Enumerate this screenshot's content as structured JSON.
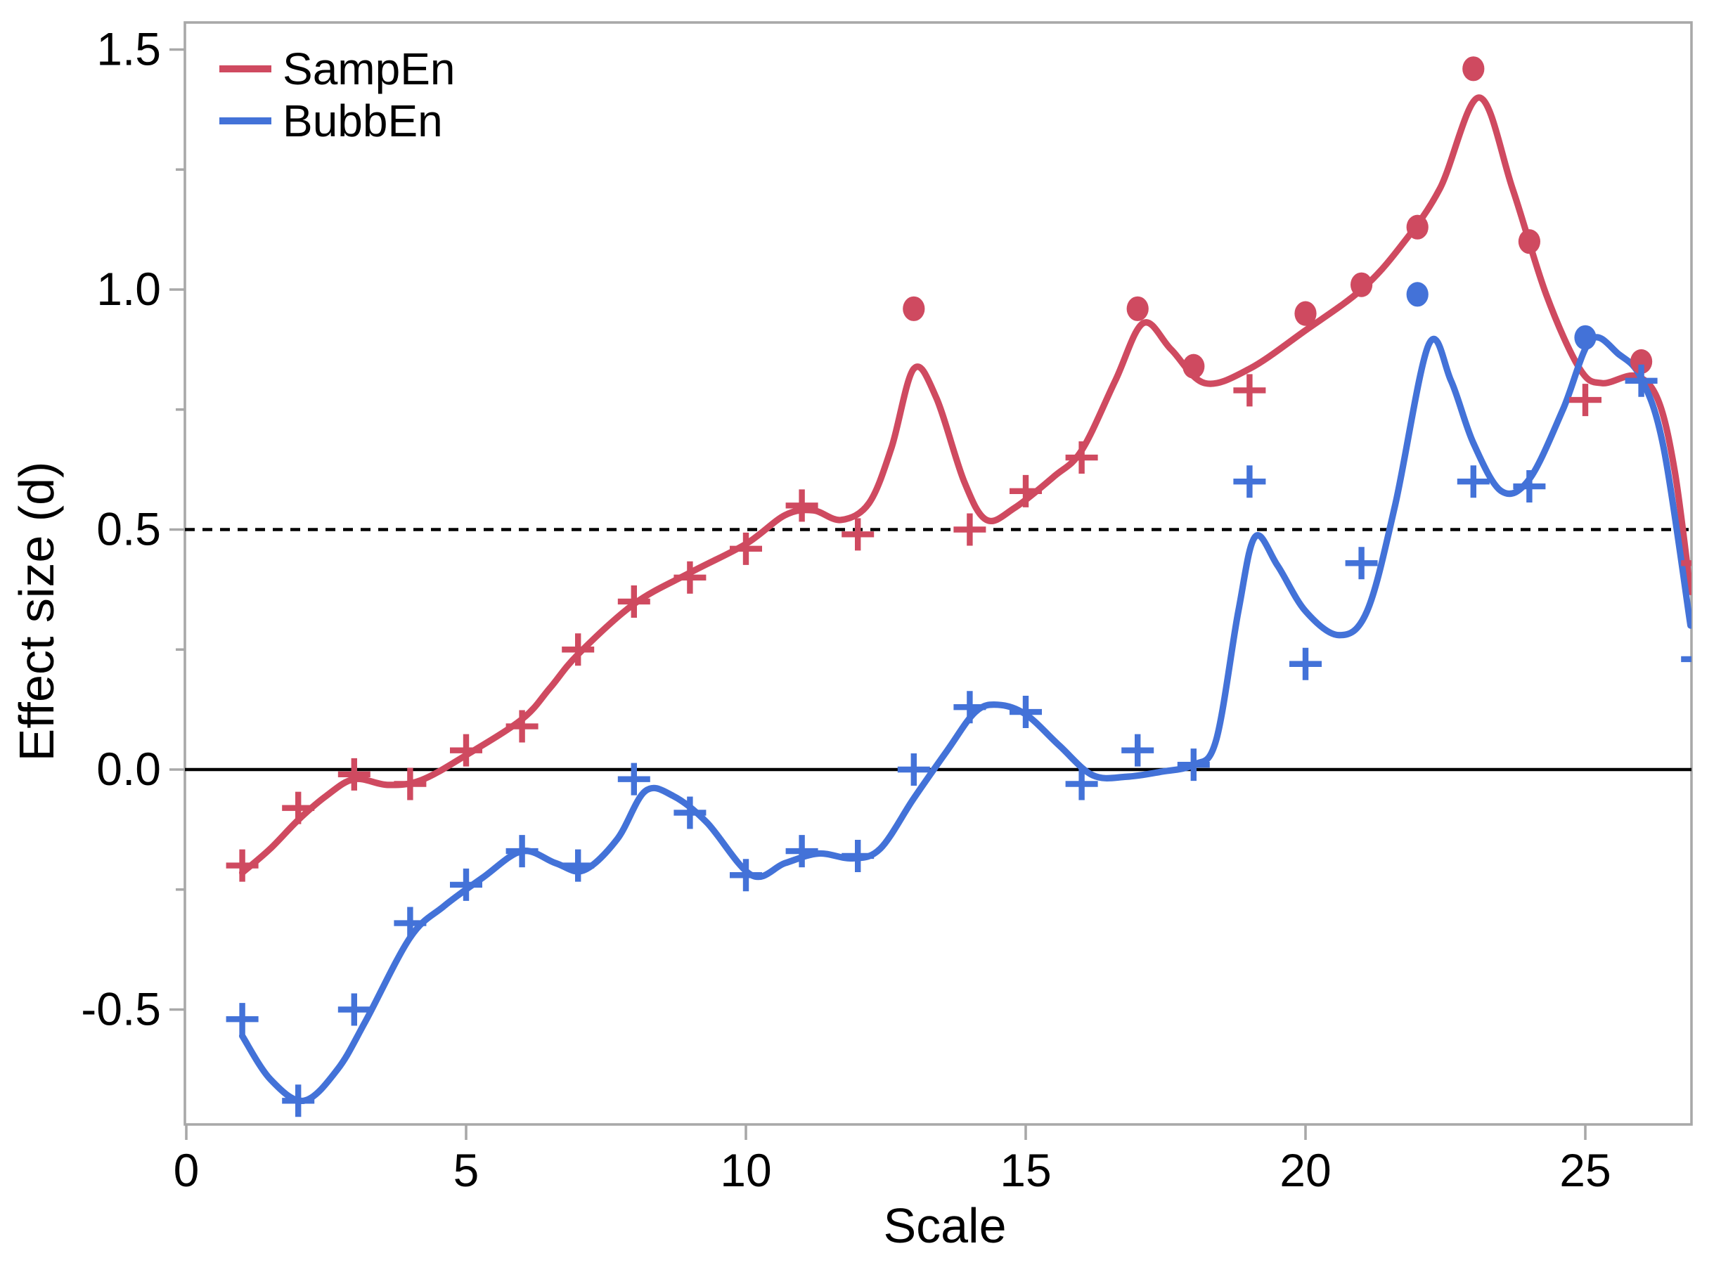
{
  "page": {
    "background": "#ffffff"
  },
  "colors": {
    "axis_border": "#a8a8a8",
    "tick": "#a8a8a8",
    "text": "#000000",
    "reference_line": "#000000",
    "sampen_red": "#cf4a60",
    "bubben_blue": "#4372d8"
  },
  "chart_data": {
    "type": "line",
    "title": "",
    "xlabel": "Scale",
    "ylabel": "Effect size (d)",
    "xlim": [
      0,
      26.9
    ],
    "ylim": [
      -0.74,
      1.56
    ],
    "grid": false,
    "legend_position": "top-left-inside",
    "x_ticks": [
      0,
      5,
      10,
      15,
      20,
      25
    ],
    "y_ticks": [
      -0.5,
      0.0,
      0.5,
      1.0,
      1.5
    ],
    "y_minor_ticks": [
      -0.25,
      0.25,
      0.75,
      1.25
    ],
    "reference_lines": [
      {
        "y": 0.0,
        "style": "solid",
        "note": "zero effect line"
      },
      {
        "y": 0.5,
        "style": "dashed",
        "note": "d = 0.5 threshold"
      }
    ],
    "x": [
      1,
      2,
      3,
      4,
      5,
      6,
      7,
      8,
      9,
      10,
      11,
      12,
      13,
      14,
      15,
      16,
      17,
      18,
      19,
      20,
      21,
      22,
      23,
      24,
      25,
      26,
      27
    ],
    "series": [
      {
        "name": "SampEn",
        "color": "#cf4a60",
        "marker_legend": "plus = point estimate, filled circle = significant point",
        "values": [
          -0.2,
          -0.08,
          -0.01,
          -0.03,
          0.04,
          0.09,
          0.25,
          0.35,
          0.4,
          0.46,
          0.55,
          0.49,
          0.96,
          0.5,
          0.58,
          0.65,
          0.96,
          0.84,
          0.79,
          0.95,
          1.01,
          1.13,
          1.46,
          1.1,
          0.77,
          0.85,
          0.43
        ],
        "markers": [
          "plus",
          "plus",
          "plus",
          "plus",
          "plus",
          "plus",
          "plus",
          "plus",
          "plus",
          "plus",
          "plus",
          "plus",
          "circle",
          "plus",
          "plus",
          "plus",
          "circle",
          "circle",
          "plus",
          "circle",
          "circle",
          "circle",
          "circle",
          "circle",
          "plus",
          "circle",
          "plus"
        ],
        "smooth": [
          [
            1,
            -0.215
          ],
          [
            1.5,
            -0.165
          ],
          [
            2,
            -0.105
          ],
          [
            2.5,
            -0.055
          ],
          [
            3,
            -0.02
          ],
          [
            3.6,
            -0.032
          ],
          [
            4.2,
            -0.022
          ],
          [
            5,
            0.03
          ],
          [
            6,
            0.105
          ],
          [
            6.5,
            0.17
          ],
          [
            7,
            0.24
          ],
          [
            8,
            0.345
          ],
          [
            9,
            0.41
          ],
          [
            10,
            0.47
          ],
          [
            10.7,
            0.53
          ],
          [
            11.2,
            0.54
          ],
          [
            11.7,
            0.52
          ],
          [
            12.2,
            0.555
          ],
          [
            12.6,
            0.67
          ],
          [
            13,
            0.835
          ],
          [
            13.4,
            0.775
          ],
          [
            13.9,
            0.6
          ],
          [
            14.3,
            0.52
          ],
          [
            14.8,
            0.545
          ],
          [
            15.5,
            0.61
          ],
          [
            16,
            0.665
          ],
          [
            16.6,
            0.81
          ],
          [
            17.1,
            0.93
          ],
          [
            17.6,
            0.875
          ],
          [
            18.2,
            0.805
          ],
          [
            19,
            0.835
          ],
          [
            20,
            0.915
          ],
          [
            21,
            1.0
          ],
          [
            21.7,
            1.09
          ],
          [
            22.4,
            1.21
          ],
          [
            23.1,
            1.4
          ],
          [
            23.7,
            1.21
          ],
          [
            24.3,
            0.99
          ],
          [
            24.9,
            0.835
          ],
          [
            25.3,
            0.805
          ],
          [
            25.9,
            0.82
          ],
          [
            26.3,
            0.77
          ],
          [
            26.6,
            0.62
          ],
          [
            26.88,
            0.37
          ]
        ]
      },
      {
        "name": "BubbEn",
        "color": "#4372d8",
        "marker_legend": "plus = point estimate, filled circle = significant point",
        "values": [
          -0.52,
          -0.69,
          -0.5,
          -0.32,
          -0.24,
          -0.17,
          -0.2,
          -0.02,
          -0.09,
          -0.22,
          -0.17,
          -0.18,
          0.0,
          0.13,
          0.12,
          -0.03,
          0.04,
          0.01,
          0.6,
          0.22,
          0.43,
          0.99,
          0.6,
          0.59,
          0.9,
          0.81,
          0.23
        ],
        "markers": [
          "plus",
          "plus",
          "plus",
          "plus",
          "plus",
          "plus",
          "plus",
          "plus",
          "plus",
          "plus",
          "plus",
          "plus",
          "plus",
          "plus",
          "plus",
          "plus",
          "plus",
          "plus",
          "plus",
          "plus",
          "plus",
          "circle",
          "plus",
          "plus",
          "circle",
          "plus",
          "plus"
        ],
        "smooth": [
          [
            1,
            -0.555
          ],
          [
            1.5,
            -0.645
          ],
          [
            2.1,
            -0.69
          ],
          [
            2.7,
            -0.625
          ],
          [
            3.2,
            -0.525
          ],
          [
            4,
            -0.35
          ],
          [
            4.6,
            -0.285
          ],
          [
            5.3,
            -0.225
          ],
          [
            6,
            -0.17
          ],
          [
            6.6,
            -0.195
          ],
          [
            7.1,
            -0.21
          ],
          [
            7.7,
            -0.145
          ],
          [
            8.2,
            -0.045
          ],
          [
            8.7,
            -0.055
          ],
          [
            9.3,
            -0.11
          ],
          [
            10.1,
            -0.22
          ],
          [
            10.7,
            -0.195
          ],
          [
            11.3,
            -0.175
          ],
          [
            11.9,
            -0.185
          ],
          [
            12.4,
            -0.165
          ],
          [
            13,
            -0.06
          ],
          [
            13.6,
            0.04
          ],
          [
            14.1,
            0.12
          ],
          [
            14.5,
            0.135
          ],
          [
            15,
            0.115
          ],
          [
            15.6,
            0.05
          ],
          [
            16.2,
            -0.012
          ],
          [
            16.8,
            -0.015
          ],
          [
            17.4,
            -0.005
          ],
          [
            18,
            0.01
          ],
          [
            18.4,
            0.06
          ],
          [
            18.8,
            0.33
          ],
          [
            19.1,
            0.485
          ],
          [
            19.5,
            0.425
          ],
          [
            20,
            0.33
          ],
          [
            20.6,
            0.28
          ],
          [
            21.1,
            0.33
          ],
          [
            21.6,
            0.55
          ],
          [
            22.2,
            0.885
          ],
          [
            22.6,
            0.81
          ],
          [
            23,
            0.68
          ],
          [
            23.5,
            0.58
          ],
          [
            24,
            0.605
          ],
          [
            24.6,
            0.75
          ],
          [
            25.1,
            0.895
          ],
          [
            25.6,
            0.865
          ],
          [
            26,
            0.815
          ],
          [
            26.4,
            0.67
          ],
          [
            26.88,
            0.3
          ]
        ]
      }
    ],
    "legend": [
      "SampEn",
      "BubbEn"
    ]
  }
}
